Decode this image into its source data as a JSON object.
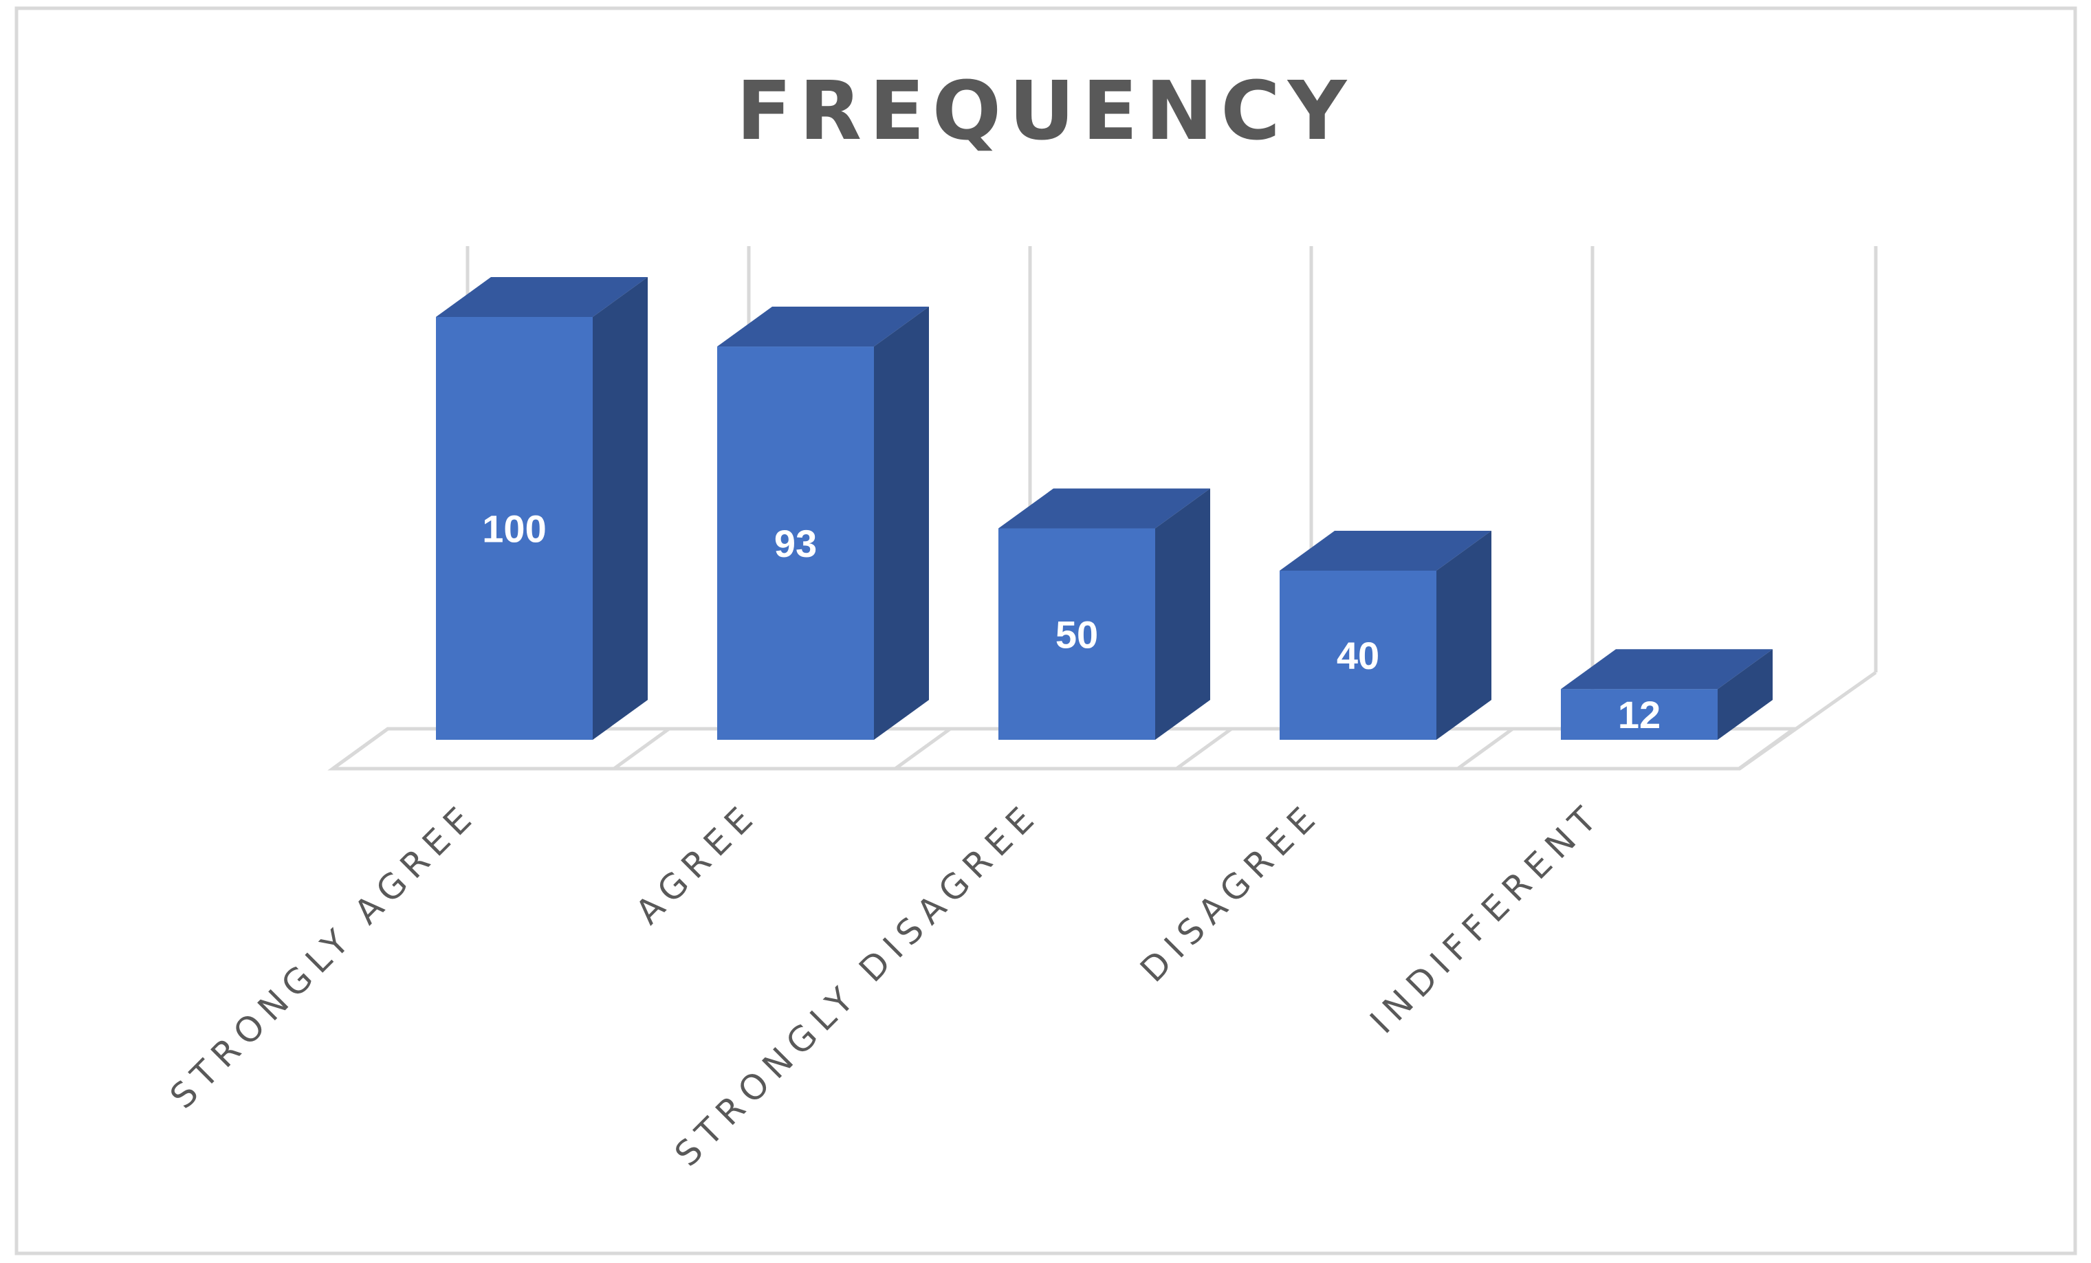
{
  "chart_data": {
    "type": "bar",
    "style": "3d-column",
    "title": "FREQUENCY",
    "xlabel": "",
    "ylabel": "",
    "categories": [
      "STRONGLY AGREE",
      "AGREE",
      "STRONGLY DISAGREE",
      "DISAGREE",
      "INDIFFERENT"
    ],
    "values": [
      100,
      93,
      50,
      40,
      12
    ],
    "ylim": [
      0,
      120
    ],
    "data_labels": true,
    "grid": true,
    "legend": "none",
    "colors": {
      "bar_front": "#4472c4",
      "bar_top": "#34589e",
      "bar_side": "#2a487f",
      "grid": "#d9d9d9",
      "title": "#595959",
      "label": "#595959",
      "value_label": "#ffffff",
      "frame": "#d9d9d9"
    }
  }
}
